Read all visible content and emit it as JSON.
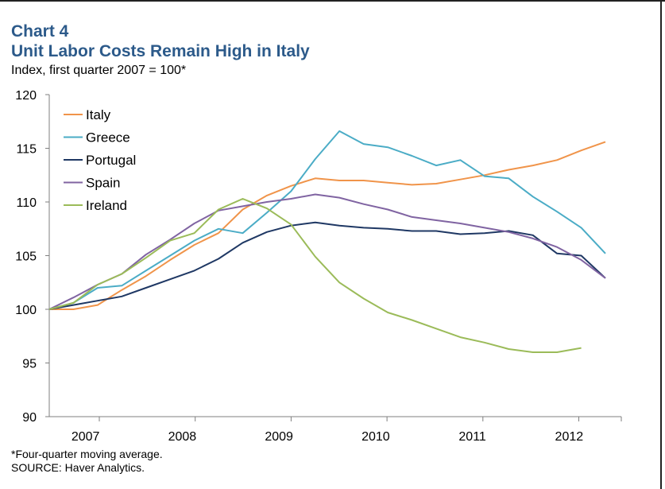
{
  "header": {
    "chart_number": "Chart 4",
    "title": "Unit Labor Costs Remain High in Italy",
    "subtitle": "Index, first quarter 2007 = 100*"
  },
  "footer": {
    "note": "*Four-quarter moving average.",
    "source": "SOURCE:  Haver Analytics."
  },
  "chart_data": {
    "type": "line",
    "title": "Unit Labor Costs Remain High in Italy",
    "ylabel": "Index, first quarter 2007 = 100*",
    "ylim": [
      90,
      120
    ],
    "yticks": [
      90,
      95,
      100,
      105,
      110,
      115,
      120
    ],
    "x_tick_labels": [
      "2007",
      "2008",
      "2009",
      "2010",
      "2011",
      "2012"
    ],
    "x_quarters": [
      "2007Q1",
      "2007Q2",
      "2007Q3",
      "2007Q4",
      "2008Q1",
      "2008Q2",
      "2008Q3",
      "2008Q4",
      "2009Q1",
      "2009Q2",
      "2009Q3",
      "2009Q4",
      "2010Q1",
      "2010Q2",
      "2010Q3",
      "2010Q4",
      "2011Q1",
      "2011Q2",
      "2011Q3",
      "2011Q4",
      "2012Q1",
      "2012Q2",
      "2012Q3",
      "2012Q4"
    ],
    "legend_position": "top-left",
    "grid": false,
    "series": [
      {
        "name": "Italy",
        "color": "#f0944a",
        "values": [
          100.0,
          100.0,
          100.4,
          101.8,
          103.1,
          104.6,
          106.0,
          107.1,
          109.3,
          110.6,
          111.5,
          112.2,
          112.0,
          112.0,
          111.8,
          111.6,
          111.7,
          112.1,
          112.5,
          113.0,
          113.4,
          113.9,
          114.8,
          115.6
        ]
      },
      {
        "name": "Greece",
        "color": "#4bacc6",
        "values": [
          100.0,
          100.6,
          102.0,
          102.2,
          103.6,
          105.0,
          106.4,
          107.5,
          107.1,
          109.0,
          111.0,
          114.0,
          116.6,
          115.4,
          115.1,
          114.3,
          113.4,
          113.9,
          112.4,
          112.2,
          110.5,
          109.1,
          107.6,
          105.2
        ]
      },
      {
        "name": "Portugal",
        "color": "#1f3864",
        "values": [
          100.0,
          100.4,
          100.8,
          101.2,
          102.0,
          102.8,
          103.6,
          104.7,
          106.2,
          107.2,
          107.8,
          108.1,
          107.8,
          107.6,
          107.5,
          107.3,
          107.3,
          107.0,
          107.1,
          107.3,
          106.9,
          105.2,
          105.0,
          102.9
        ]
      },
      {
        "name": "Spain",
        "color": "#8064a2",
        "values": [
          100.0,
          101.1,
          102.3,
          103.3,
          105.1,
          106.5,
          108.0,
          109.2,
          109.6,
          110.0,
          110.3,
          110.7,
          110.4,
          109.8,
          109.3,
          108.6,
          108.3,
          108.0,
          107.6,
          107.2,
          106.6,
          105.8,
          104.6,
          102.9
        ]
      },
      {
        "name": "Ireland",
        "color": "#9bbb59",
        "values": [
          100.0,
          100.6,
          102.3,
          103.3,
          104.8,
          106.4,
          107.1,
          109.3,
          110.3,
          109.4,
          107.9,
          104.9,
          102.5,
          101.0,
          99.7,
          99.0,
          98.2,
          97.4,
          96.9,
          96.3,
          96.0,
          96.0,
          96.4,
          null
        ]
      }
    ]
  }
}
